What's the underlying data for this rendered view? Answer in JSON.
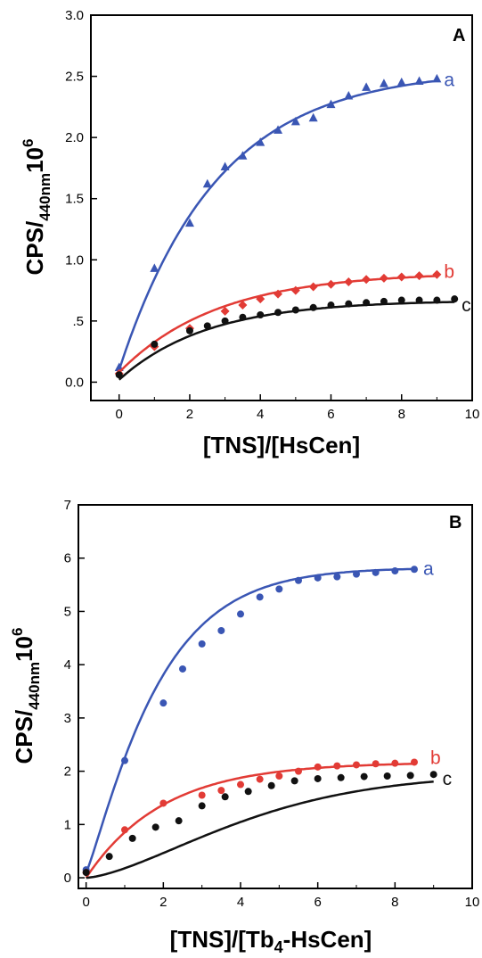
{
  "chart_data": [
    {
      "type": "scatter",
      "panel_label": "A",
      "xlabel": "[TNS]/[HsCen]",
      "ylabel_main": "CPS/",
      "ylabel_sub": "440nm",
      "ylabel_tail": "10",
      "ylabel_sup": "6",
      "xlim": [
        -0.8,
        10
      ],
      "ylim": [
        -0.15,
        3.0
      ],
      "xticks": [
        "0",
        "2",
        "4",
        "6",
        "8",
        "10"
      ],
      "yticks": [
        "0.0",
        ".5",
        "1.0",
        "1.5",
        "2.0",
        "2.5",
        "3.0"
      ],
      "series": [
        {
          "name": "a",
          "color": "#3a56b4",
          "marker": "triangle",
          "x": [
            0,
            1,
            2,
            2.5,
            3,
            3.5,
            4,
            4.5,
            5,
            5.5,
            6,
            6.5,
            7,
            7.5,
            8,
            8.5,
            9
          ],
          "y": [
            0.12,
            0.93,
            1.3,
            1.62,
            1.76,
            1.85,
            1.96,
            2.06,
            2.13,
            2.16,
            2.27,
            2.34,
            2.41,
            2.44,
            2.45,
            2.46,
            2.48
          ],
          "fit": {
            "y0": 0.1,
            "ymax": 2.56,
            "k": 0.36
          }
        },
        {
          "name": "b",
          "color": "#e23b35",
          "marker": "diamond",
          "x": [
            0,
            1,
            2,
            3,
            3.5,
            4,
            4.5,
            5,
            5.5,
            6,
            6.5,
            7,
            7.5,
            8,
            8.5,
            9
          ],
          "y": [
            0.07,
            0.29,
            0.44,
            0.58,
            0.63,
            0.68,
            0.72,
            0.75,
            0.78,
            0.8,
            0.82,
            0.84,
            0.85,
            0.86,
            0.87,
            0.88
          ],
          "fit": {
            "y0": 0.08,
            "ymax": 0.9,
            "k": 0.36
          }
        },
        {
          "name": "c",
          "color": "#111111",
          "marker": "circle",
          "x": [
            0,
            1,
            2,
            2.5,
            3,
            3.5,
            4,
            4.5,
            5,
            5.5,
            6,
            6.5,
            7,
            7.5,
            8,
            8.5,
            9,
            9.5
          ],
          "y": [
            0.06,
            0.31,
            0.42,
            0.46,
            0.5,
            0.53,
            0.55,
            0.57,
            0.59,
            0.61,
            0.63,
            0.64,
            0.65,
            0.66,
            0.67,
            0.67,
            0.67,
            0.68
          ],
          "fit": {
            "y0": 0.02,
            "ymax": 0.67,
            "k": 0.4
          }
        }
      ]
    },
    {
      "type": "scatter",
      "panel_label": "B",
      "xlabel_main": "[TNS]/[Tb",
      "xlabel_sub": "4",
      "xlabel_tail": "-HsCen]",
      "ylabel_main": "CPS/",
      "ylabel_sub": "440nm",
      "ylabel_tail": "10",
      "ylabel_sup": "6",
      "xlim": [
        -0.2,
        10
      ],
      "ylim": [
        -0.2,
        7
      ],
      "xticks": [
        "0",
        "2",
        "4",
        "6",
        "8",
        "10"
      ],
      "yticks": [
        "0",
        "1",
        "2",
        "3",
        "4",
        "5",
        "6",
        "7"
      ],
      "series": [
        {
          "name": "a",
          "color": "#3a56b4",
          "marker": "circle",
          "x": [
            0,
            1,
            2,
            2.5,
            3,
            3.5,
            4,
            4.5,
            5,
            5.5,
            6,
            6.5,
            7,
            7.5,
            8,
            8.5
          ],
          "y": [
            0.15,
            2.2,
            3.28,
            3.92,
            4.39,
            4.64,
            4.95,
            5.27,
            5.42,
            5.58,
            5.63,
            5.65,
            5.7,
            5.73,
            5.76,
            5.79
          ],
          "fit": {
            "y0": 0.1,
            "ymax": 5.82,
            "k": 0.52,
            "p": 1.15
          }
        },
        {
          "name": "b",
          "color": "#e23b35",
          "marker": "circle",
          "x": [
            0,
            1,
            2,
            3,
            3.5,
            4,
            4.5,
            5,
            5.5,
            6,
            6.5,
            7,
            7.5,
            8,
            8.5
          ],
          "y": [
            0.1,
            0.9,
            1.4,
            1.55,
            1.64,
            1.75,
            1.85,
            1.91,
            2.0,
            2.08,
            2.1,
            2.12,
            2.14,
            2.15,
            2.17
          ],
          "fit": {
            "y0": 0.0,
            "ymax": 2.17,
            "k": 0.5,
            "p": 1.0
          }
        },
        {
          "name": "c",
          "color": "#111111",
          "marker": "circle",
          "x": [
            0,
            0.6,
            1.2,
            1.8,
            2.4,
            3,
            3.6,
            4.2,
            4.8,
            5.4,
            6,
            6.6,
            7.2,
            7.8,
            8.4,
            9
          ],
          "y": [
            0.1,
            0.4,
            0.74,
            0.95,
            1.07,
            1.35,
            1.52,
            1.62,
            1.73,
            1.82,
            1.86,
            1.88,
            1.9,
            1.91,
            1.92,
            1.94
          ],
          "fit": {
            "y0": 0.0,
            "ymax": 1.95,
            "k": 0.21,
            "p": 1.5
          }
        }
      ]
    }
  ]
}
